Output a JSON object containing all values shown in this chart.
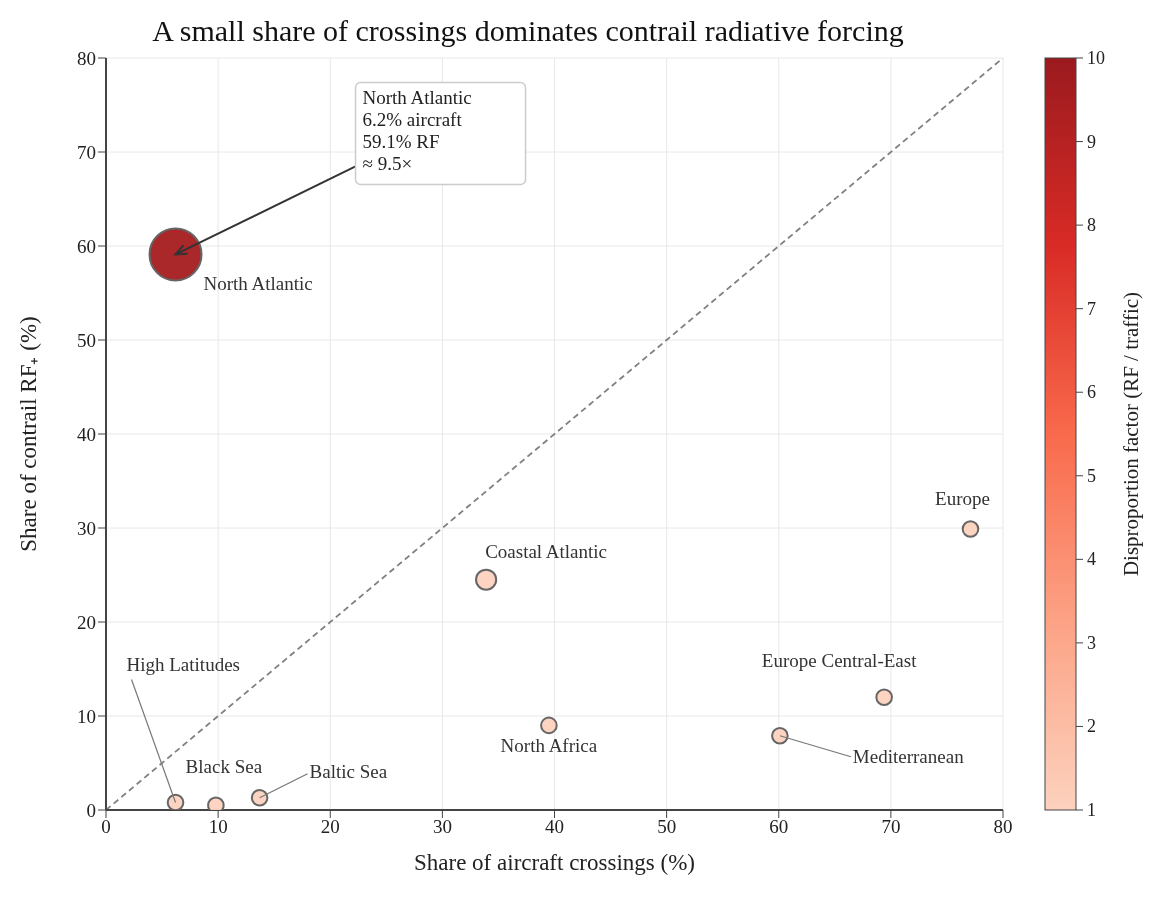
{
  "chart_data": {
    "type": "bubble",
    "title": "A small share of crossings dominates contrail radiative forcing",
    "xlabel": "Share of aircraft crossings (%)",
    "ylabel": "Share of contrail RF₊ (%)",
    "clabel": "Disproportion factor (RF / traffic)",
    "series": [
      {
        "x": [
          6.2,
          77.1,
          33.9,
          69.4,
          60.1,
          39.5,
          6.2,
          9.8,
          13.7
        ],
        "values": [
          59.1,
          29.9,
          24.5,
          12.0,
          7.9,
          9.0,
          0.8,
          0.5,
          1.3
        ],
        "sizes": [
          1,
          0.09,
          0.15,
          0.09,
          0.09,
          0.09,
          0.09,
          0.09,
          0.09
        ],
        "colors": [
          "#a51b1f",
          "#fcd2be",
          "#fcd2be",
          "#fcd2be",
          "#fcd2be",
          "#fcd2be",
          "#fcd2be",
          "#fcd2be",
          "#fcd2be"
        ]
      },
      {
        "type": "line",
        "x": [
          0,
          80
        ],
        "values": [
          0,
          80
        ],
        "color": "#808080",
        "line_style": "dashed"
      }
    ],
    "xlim": [
      0,
      80
    ],
    "ylim": [
      0,
      80
    ],
    "xticks": [
      0,
      10,
      20,
      30,
      40,
      50,
      60,
      70,
      80
    ],
    "yticks": [
      0,
      10,
      20,
      30,
      40,
      50,
      60,
      70,
      80
    ],
    "clim": [
      1,
      10
    ],
    "cticks": [
      1,
      2,
      3,
      4,
      5,
      6,
      7,
      8,
      9,
      10
    ],
    "grid": true,
    "annotations": [
      {
        "text": "North Atlantic\n6.2% aircraft\n59.1% RF\n≈ 9.5×",
        "x": 6.2,
        "y": 59.1
      },
      {
        "text": "North Atlantic",
        "x": 6.2,
        "y": 59.1
      },
      {
        "text": "Europe",
        "x": 77.1,
        "y": 29.9
      },
      {
        "text": "Coastal Atlantic",
        "x": 33.9,
        "y": 24.5
      },
      {
        "text": "Europe Central-East",
        "x": 69.4,
        "y": 12.0
      },
      {
        "text": "Mediterranean",
        "x": 60.1,
        "y": 7.9
      },
      {
        "text": "North Africa",
        "x": 39.5,
        "y": 9.0
      },
      {
        "text": "High Latitudes",
        "x": 6.2,
        "y": 0.8
      },
      {
        "text": "Black Sea",
        "x": 9.8,
        "y": 0.5
      },
      {
        "text": "Baltic Sea",
        "x": 13.7,
        "y": 1.3
      }
    ]
  }
}
